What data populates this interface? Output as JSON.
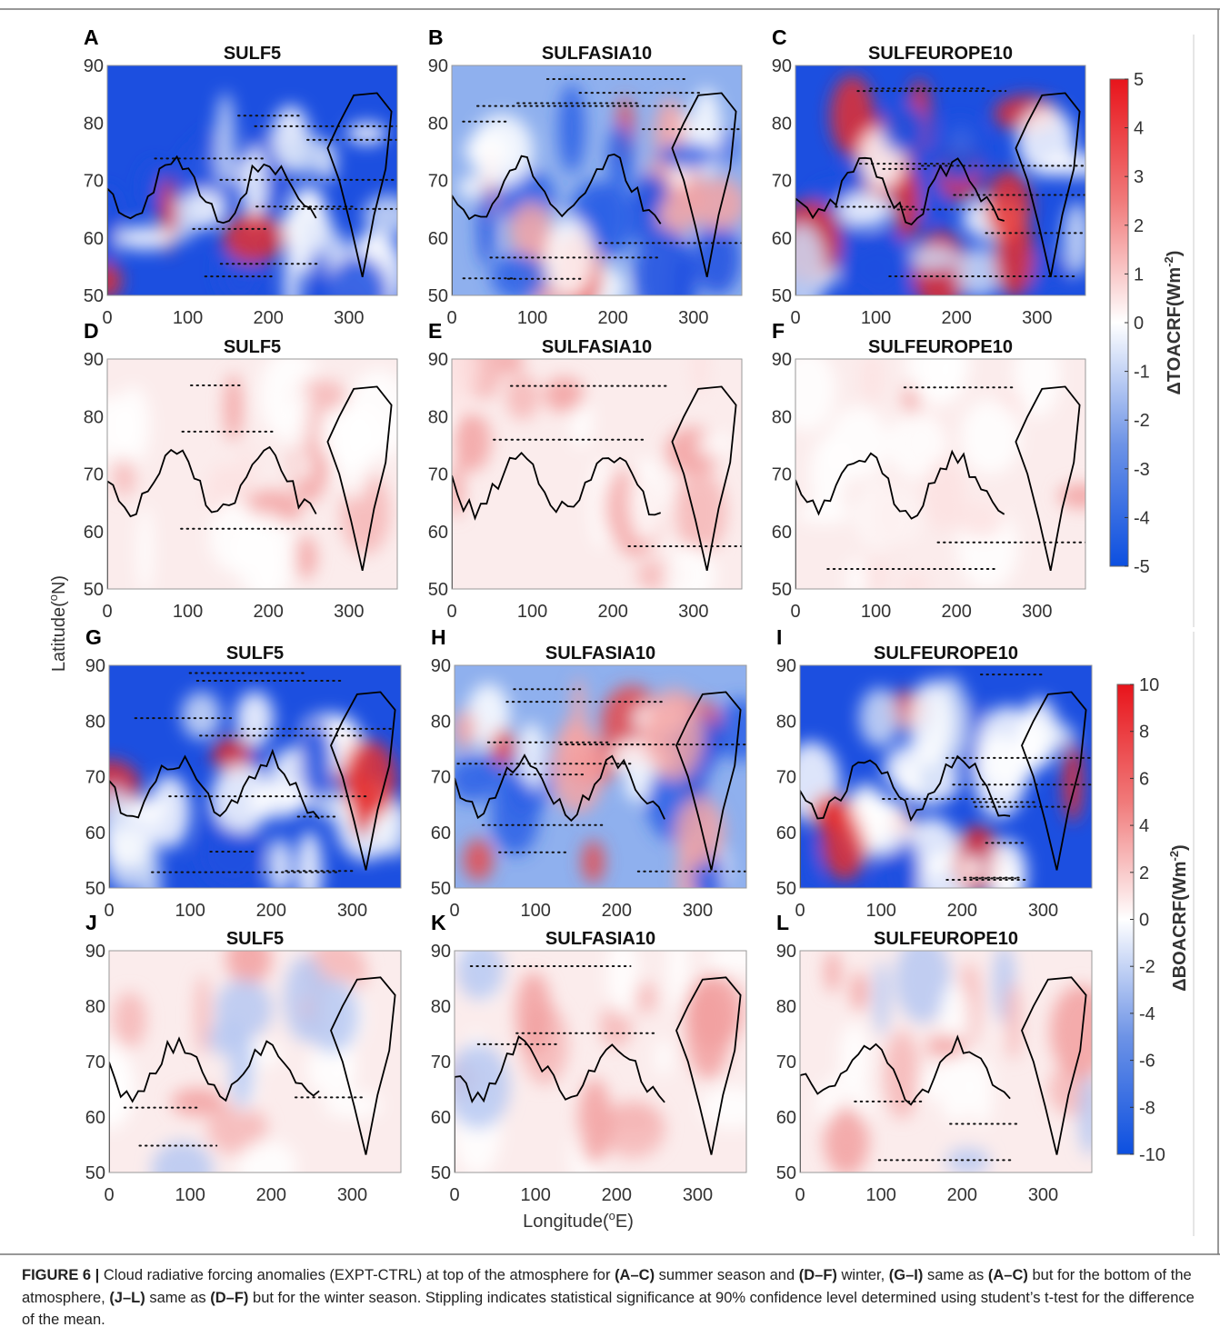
{
  "panels": [
    {
      "letter": "A",
      "title": "SULF5"
    },
    {
      "letter": "B",
      "title": "SULFASIA10"
    },
    {
      "letter": "C",
      "title": "SULFEUROPE10"
    },
    {
      "letter": "D",
      "title": "SULF5"
    },
    {
      "letter": "E",
      "title": "SULFASIA10"
    },
    {
      "letter": "F",
      "title": "SULFEUROPE10"
    },
    {
      "letter": "G",
      "title": "SULF5"
    },
    {
      "letter": "H",
      "title": "SULFASIA10"
    },
    {
      "letter": "I",
      "title": "SULFEUROPE10"
    },
    {
      "letter": "J",
      "title": "SULF5"
    },
    {
      "letter": "K",
      "title": "SULFASIA10"
    },
    {
      "letter": "L",
      "title": "SULFEUROPE10"
    }
  ],
  "y_tick_labels": [
    "50",
    "60",
    "70",
    "80",
    "90"
  ],
  "x_tick_labels": [
    "0",
    "100",
    "200",
    "300"
  ],
  "y_axis_label": {
    "text": "Latitude(",
    "sup": "o",
    "suffix": "N)"
  },
  "x_axis_label": {
    "text": "Longitude(",
    "sup": "o",
    "suffix": "E)"
  },
  "colorbars": [
    {
      "label": {
        "text": "ΔTOACRF(Wm",
        "sup": "-2",
        "suffix": ")"
      },
      "tick_labels": [
        "5",
        "4",
        "3",
        "2",
        "1",
        "0",
        "-1",
        "-2",
        "-3",
        "-4",
        "-5"
      ]
    },
    {
      "label": {
        "text": "ΔBOACRF(Wm",
        "sup": "-2",
        "suffix": ")"
      },
      "tick_labels": [
        "10",
        "8",
        "6",
        "4",
        "2",
        "0",
        "-2",
        "-4",
        "-6",
        "-8",
        "-10"
      ]
    }
  ],
  "caption": [
    {
      "text": "FIGURE 6 |",
      "bold": true
    },
    {
      "text": " Cloud radiative forcing anomalies (EXPT-CTRL) at top of the atmosphere for ",
      "bold": false
    },
    {
      "text": "(A–C)",
      "bold": true
    },
    {
      "text": " summer season and ",
      "bold": false
    },
    {
      "text": "(D–F)",
      "bold": true
    },
    {
      "text": " winter, ",
      "bold": false
    },
    {
      "text": "(G–I)",
      "bold": true
    },
    {
      "text": " same as ",
      "bold": false
    },
    {
      "text": "(A–C)",
      "bold": true
    },
    {
      "text": " but for the bottom of the atmosphere, ",
      "bold": false
    },
    {
      "text": "(J–L)",
      "bold": true
    },
    {
      "text": " same as ",
      "bold": false
    },
    {
      "text": "(D–F)",
      "bold": true
    },
    {
      "text": " but for the winter season. Stippling indicates statistical significance at 90% confidence level determined using student’s t-test for the difference of the mean.",
      "bold": false
    }
  ]
}
